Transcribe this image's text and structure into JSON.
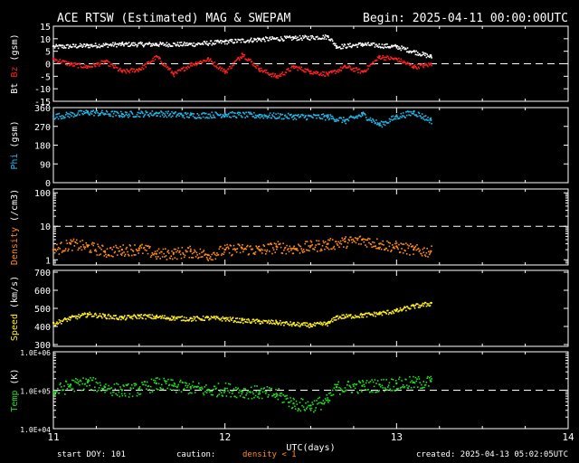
{
  "header": {
    "title": "ACE RTSW (Estimated) MAG & SWEPAM",
    "begin": "Begin: 2025-04-11 00:00:00UTC"
  },
  "footer": {
    "start_doy": "start DOY: 101",
    "caution": "caution:",
    "density_note": "density < 1",
    "created": "created: 2025-04-13 05:02:05UTC"
  },
  "colors": {
    "bt": "#ffffff",
    "bz": "#ff2020",
    "phi": "#22b8e8",
    "density": "#ff8c1a",
    "speed": "#ffee22",
    "temp": "#22dd22"
  },
  "chart_data": {
    "type": "scatter",
    "x_axis": {
      "label": "UTC(days)",
      "range": [
        11,
        14
      ],
      "ticks": [
        "11",
        "12",
        "13",
        "14"
      ],
      "data_end": 13.2
    },
    "panels": [
      {
        "id": "mag",
        "ylabel_parts": [
          "Bt",
          "Bz",
          "(gsm)"
        ],
        "ylim": [
          -15,
          15
        ],
        "ticks": [
          "15",
          "10",
          "5",
          "0",
          "-5",
          "-10",
          "-15"
        ],
        "tick_values": [
          15,
          10,
          5,
          0,
          -5,
          -10,
          -15
        ],
        "ref_line": 0,
        "series": [
          {
            "name": "Bt",
            "color_key": "bt",
            "x": [
              11.0,
              11.2,
              11.4,
              11.6,
              11.8,
              12.0,
              12.2,
              12.4,
              12.6,
              12.65,
              12.8,
              13.0,
              13.2
            ],
            "y": [
              7,
              7.5,
              8,
              8,
              8,
              9,
              10,
              10.5,
              11,
              7,
              8,
              7,
              3
            ]
          },
          {
            "name": "Bz",
            "color_key": "bz",
            "x": [
              11.0,
              11.1,
              11.2,
              11.3,
              11.4,
              11.5,
              11.6,
              11.7,
              11.8,
              11.9,
              12.0,
              12.1,
              12.2,
              12.3,
              12.4,
              12.5,
              12.6,
              12.7,
              12.8,
              12.9,
              13.0,
              13.1,
              13.2
            ],
            "y": [
              2,
              0,
              -1,
              1,
              -3,
              -2,
              3,
              -4,
              0,
              2,
              -3,
              4,
              -2,
              -5,
              -1,
              -3,
              -4,
              -1,
              -3,
              3,
              2,
              -1,
              0
            ]
          }
        ]
      },
      {
        "id": "phi",
        "ylabel_parts": [
          "Phi",
          "(gsm)"
        ],
        "ylim": [
          0,
          360
        ],
        "ticks": [
          "360",
          "270",
          "180",
          "90",
          "0"
        ],
        "tick_values": [
          360,
          270,
          180,
          90,
          0
        ],
        "series": [
          {
            "name": "Phi",
            "color_key": "phi",
            "x": [
              11.0,
              11.2,
              11.4,
              11.6,
              11.8,
              12.0,
              12.2,
              12.4,
              12.6,
              12.7,
              12.8,
              12.9,
              13.0,
              13.1,
              13.2
            ],
            "y": [
              320,
              340,
              330,
              335,
              325,
              330,
              325,
              320,
              318,
              300,
              330,
              280,
              320,
              340,
              300
            ]
          }
        ]
      },
      {
        "id": "density",
        "ylabel_parts": [
          "Density",
          "(/cm3)"
        ],
        "ylim_log": [
          0.7,
          130
        ],
        "ticks": [
          "100",
          "10",
          "1"
        ],
        "tick_values": [
          100,
          10,
          1
        ],
        "ref_line": 10,
        "series": [
          {
            "name": "Density",
            "color_key": "density",
            "x": [
              11.0,
              11.1,
              11.2,
              11.3,
              11.4,
              11.5,
              11.6,
              11.7,
              11.8,
              11.9,
              12.0,
              12.1,
              12.2,
              12.3,
              12.4,
              12.5,
              12.6,
              12.7,
              12.8,
              12.9,
              13.0,
              13.1,
              13.2
            ],
            "y": [
              2,
              3,
              2.5,
              1.8,
              2,
              2.2,
              1.5,
              1.6,
              1.8,
              1.4,
              2,
              2.2,
              2,
              2.5,
              2.2,
              2.6,
              3,
              3.5,
              4,
              3,
              2.5,
              2,
              1.8
            ]
          }
        ]
      },
      {
        "id": "speed",
        "ylabel_parts": [
          "Speed",
          "(km/s)"
        ],
        "ylim": [
          290,
          710
        ],
        "ticks": [
          "700",
          "600",
          "500",
          "400",
          "300"
        ],
        "tick_values": [
          700,
          600,
          500,
          400,
          300
        ],
        "series": [
          {
            "name": "Speed",
            "color_key": "speed",
            "x": [
              11.0,
              11.1,
              11.2,
              11.3,
              11.4,
              11.5,
              11.6,
              11.7,
              11.8,
              11.9,
              12.0,
              12.1,
              12.2,
              12.3,
              12.4,
              12.5,
              12.6,
              12.65,
              12.8,
              12.9,
              13.0,
              13.1,
              13.2
            ],
            "y": [
              420,
              450,
              470,
              460,
              450,
              460,
              455,
              450,
              445,
              450,
              445,
              435,
              430,
              425,
              415,
              410,
              420,
              455,
              465,
              475,
              490,
              515,
              530
            ]
          }
        ]
      },
      {
        "id": "temp",
        "ylabel_parts": [
          "Temp",
          "(K)"
        ],
        "ylim_log": [
          10000,
          1000000
        ],
        "ticks": [
          "1.0E+06",
          "1.0E+05",
          "1.0E+04"
        ],
        "tick_values": [
          1000000,
          100000,
          10000
        ],
        "ref_line": 100000,
        "series": [
          {
            "name": "Temp",
            "color_key": "temp",
            "x": [
              11.0,
              11.1,
              11.2,
              11.3,
              11.4,
              11.5,
              11.6,
              11.7,
              11.8,
              11.9,
              12.0,
              12.1,
              12.2,
              12.3,
              12.4,
              12.5,
              12.6,
              12.65,
              12.8,
              12.9,
              13.0,
              13.1,
              13.2
            ],
            "y": [
              90000,
              140000,
              160000,
              120000,
              100000,
              110000,
              150000,
              130000,
              120000,
              100000,
              110000,
              95000,
              90000,
              80000,
              45000,
              40000,
              55000,
              120000,
              130000,
              140000,
              150000,
              160000,
              170000
            ]
          }
        ]
      }
    ]
  }
}
